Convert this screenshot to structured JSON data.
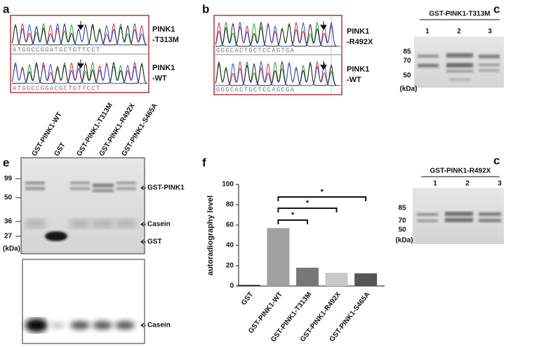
{
  "panels": {
    "a": {
      "label": "a",
      "traces": [
        {
          "name": [
            "PINK1",
            "-T313M"
          ],
          "sequence": "ATGGCCGGATGCTGTTCCT"
        },
        {
          "name": [
            "PINK1",
            "-WT"
          ],
          "sequence": "ATGGCCGGACGCTGTTCCT"
        }
      ]
    },
    "b": {
      "label": "b",
      "traces": [
        {
          "name": [
            "PINK1",
            "-R492X"
          ],
          "sequence": "GGGCACTGCTCCAGTGA"
        },
        {
          "name": [
            "PINK1",
            "-WT"
          ],
          "sequence": "GGGCACTGCTCCAGCGA"
        }
      ]
    },
    "c_top": {
      "label": "c",
      "title": "GST-PINK1-T313M",
      "lanes": [
        "1",
        "2",
        "3"
      ],
      "markers": [
        "85",
        "70",
        "50"
      ],
      "unit": "(kDa)"
    },
    "c_bottom": {
      "label": "c",
      "title": "GST-PINK1-R492X",
      "lanes": [
        "1",
        "2",
        "3"
      ],
      "markers": [
        "85",
        "70",
        "50"
      ],
      "unit": "(kDa)"
    },
    "e": {
      "label": "e",
      "lanes": [
        "GST-PINK1-WT",
        "GST",
        "GST-PINK1-T313M",
        "GST-PINK1-R492X",
        "GST-PINK1-S465A"
      ],
      "markers": [
        "99",
        "50",
        "36",
        "27"
      ],
      "unit": "(kDa)",
      "band_labels": [
        "GST-PINK1",
        "Casein",
        "GST"
      ],
      "autoradiography_label": "Casein"
    },
    "f": {
      "label": "f"
    }
  },
  "chart_data": {
    "type": "bar",
    "ylabel": "autoradiography level",
    "categories": [
      "GST",
      "GST-PINK1-WT",
      "GST-PINK1-T313M",
      "GST-PINK1-R492X",
      "GST-PINK1-S465A"
    ],
    "values": [
      1,
      57,
      18,
      13,
      12.5
    ],
    "colors": [
      "#111111",
      "#a0a0a0",
      "#777777",
      "#c8c8c8",
      "#555555"
    ],
    "ylim": [
      0,
      100
    ],
    "yticks": [
      0,
      20,
      40,
      60,
      80,
      100
    ],
    "annotations": [
      "*",
      "*",
      "*"
    ]
  }
}
